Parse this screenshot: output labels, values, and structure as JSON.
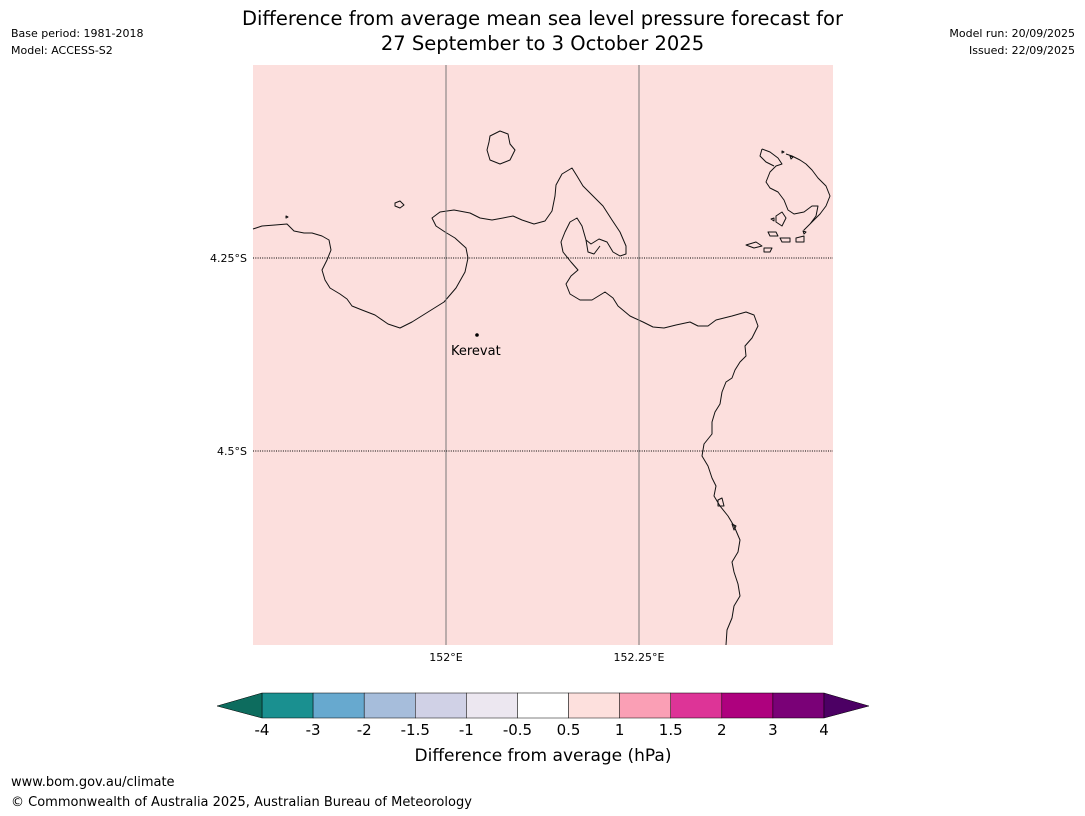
{
  "title": {
    "line1": "Difference from average mean sea level pressure forecast for",
    "line2": "27 September to 3 October 2025"
  },
  "meta_left": {
    "base_period": "Base period: 1981-2018",
    "model": "Model: ACCESS-S2"
  },
  "meta_right": {
    "model_run": "Model run: 20/09/2025",
    "issued": "Issued: 22/09/2025"
  },
  "map": {
    "fill_color": "#fcdfdd",
    "lat_labels": [
      "4.25°S",
      "4.5°S"
    ],
    "lon_labels": [
      "152°E",
      "152.25°E"
    ],
    "place_label": "Kerevat"
  },
  "colorbar": {
    "label": "Difference from average (hPa)",
    "tick_labels": [
      "-4",
      "-3",
      "-2",
      "-1.5",
      "-1",
      "-0.5",
      "0.5",
      "1",
      "1.5",
      "2",
      "3",
      "4"
    ],
    "under_color": "#0d6c5e",
    "over_color": "#4c0064",
    "colors": [
      "#1a9090",
      "#67a9cf",
      "#a6bddb",
      "#d0d1e6",
      "#ece7f0",
      "#ffffff",
      "#fde0dd",
      "#fa9fb5",
      "#dd3497",
      "#ae017e",
      "#7a0177"
    ]
  },
  "footer": {
    "url": "www.bom.gov.au/climate",
    "copyright": "© Commonwealth of Australia 2025, Australian Bureau of Meteorology"
  }
}
